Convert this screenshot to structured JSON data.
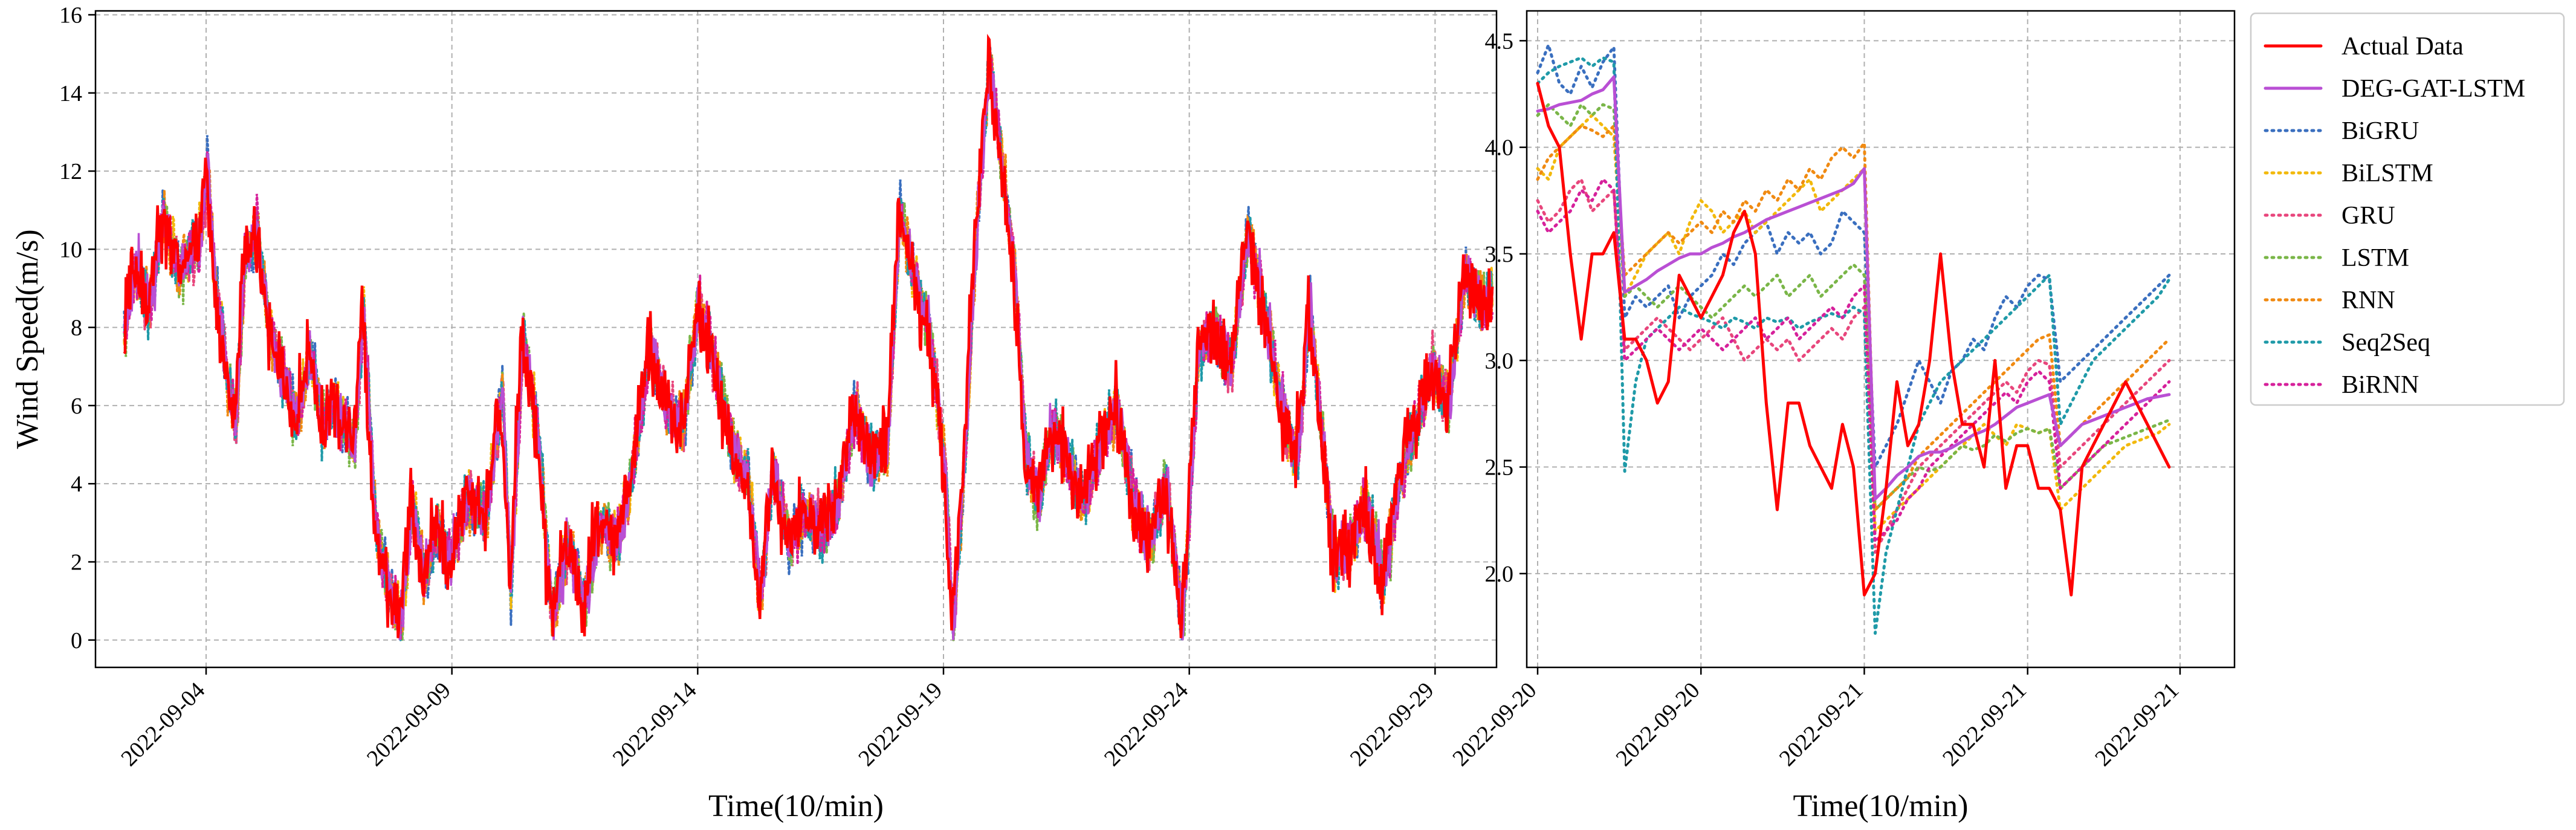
{
  "chart_data": [
    {
      "type": "line",
      "xlabel": "Time(10/min)",
      "ylabel": "Wind Speed(m/s)",
      "xlim": [
        "2022-09-01T18:00",
        "2022-09-30T06:00"
      ],
      "ylim": [
        -0.7,
        16.1
      ],
      "yticks": [
        0,
        2,
        4,
        6,
        8,
        10,
        12,
        14,
        16
      ],
      "xticks": [
        "2022-09-04",
        "2022-09-09",
        "2022-09-14",
        "2022-09-19",
        "2022-09-24",
        "2022-09-29"
      ],
      "grid": true,
      "actual_keypoints": [
        [
          "2022-09-02T08:00",
          8.0
        ],
        [
          "2022-09-02T12:00",
          9.6
        ],
        [
          "2022-09-02T20:00",
          8.5
        ],
        [
          "2022-09-03T02:00",
          10.8
        ],
        [
          "2022-09-03T10:00",
          9.5
        ],
        [
          "2022-09-03T20:00",
          10.2
        ],
        [
          "2022-09-04T00:00",
          12.0
        ],
        [
          "2022-09-04T04:00",
          9.0
        ],
        [
          "2022-09-04T10:00",
          6.5
        ],
        [
          "2022-09-04T14:00",
          5.6
        ],
        [
          "2022-09-04T18:00",
          9.6
        ],
        [
          "2022-09-05T00:00",
          10.5
        ],
        [
          "2022-09-05T06:00",
          8.0
        ],
        [
          "2022-09-05T12:00",
          7.0
        ],
        [
          "2022-09-05T20:00",
          5.5
        ],
        [
          "2022-09-06T02:00",
          7.5
        ],
        [
          "2022-09-06T08:00",
          5.5
        ],
        [
          "2022-09-06T14:00",
          6.0
        ],
        [
          "2022-09-07T00:00",
          5.0
        ],
        [
          "2022-09-07T04:00",
          8.5
        ],
        [
          "2022-09-07T10:00",
          3.0
        ],
        [
          "2022-09-07T16:00",
          1.5
        ],
        [
          "2022-09-07T22:00",
          0.3
        ],
        [
          "2022-09-08T04:00",
          3.5
        ],
        [
          "2022-09-08T10:00",
          1.5
        ],
        [
          "2022-09-08T16:00",
          3.0
        ],
        [
          "2022-09-08T22:00",
          2.0
        ],
        [
          "2022-09-09T06:00",
          3.5
        ],
        [
          "2022-09-09T16:00",
          3.2
        ],
        [
          "2022-09-10T00:00",
          6.5
        ],
        [
          "2022-09-10T04:00",
          1.2
        ],
        [
          "2022-09-10T10:00",
          7.8
        ],
        [
          "2022-09-10T18:00",
          5.0
        ],
        [
          "2022-09-11T00:00",
          0.5
        ],
        [
          "2022-09-11T08:00",
          2.5
        ],
        [
          "2022-09-11T16:00",
          1.0
        ],
        [
          "2022-09-12T00:00",
          3.0
        ],
        [
          "2022-09-12T08:00",
          2.5
        ],
        [
          "2022-09-12T16:00",
          4.5
        ],
        [
          "2022-09-13T00:00",
          7.5
        ],
        [
          "2022-09-13T08:00",
          6.0
        ],
        [
          "2022-09-13T16:00",
          5.5
        ],
        [
          "2022-09-14T00:00",
          8.5
        ],
        [
          "2022-09-14T08:00",
          7.0
        ],
        [
          "2022-09-14T16:00",
          5.0
        ],
        [
          "2022-09-15T00:00",
          4.0
        ],
        [
          "2022-09-15T06:00",
          1.0
        ],
        [
          "2022-09-15T12:00",
          4.5
        ],
        [
          "2022-09-15T20:00",
          2.5
        ],
        [
          "2022-09-16T04:00",
          3.2
        ],
        [
          "2022-09-16T12:00",
          2.8
        ],
        [
          "2022-09-16T20:00",
          3.5
        ],
        [
          "2022-09-17T04:00",
          6.0
        ],
        [
          "2022-09-17T12:00",
          4.5
        ],
        [
          "2022-09-17T20:00",
          5.0
        ],
        [
          "2022-09-18T02:00",
          11.0
        ],
        [
          "2022-09-18T08:00",
          9.5
        ],
        [
          "2022-09-18T16:00",
          8.0
        ],
        [
          "2022-09-19T00:00",
          4.5
        ],
        [
          "2022-09-19T04:00",
          0.2
        ],
        [
          "2022-09-19T10:00",
          5.0
        ],
        [
          "2022-09-19T16:00",
          11.0
        ],
        [
          "2022-09-19T22:00",
          14.8
        ],
        [
          "2022-09-20T04:00",
          12.0
        ],
        [
          "2022-09-20T10:00",
          9.5
        ],
        [
          "2022-09-20T16:00",
          4.5
        ],
        [
          "2022-09-20T22:00",
          3.5
        ],
        [
          "2022-09-21T04:00",
          5.5
        ],
        [
          "2022-09-21T12:00",
          4.5
        ],
        [
          "2022-09-21T20:00",
          3.5
        ],
        [
          "2022-09-22T04:00",
          5.0
        ],
        [
          "2022-09-22T12:00",
          6.0
        ],
        [
          "2022-09-22T20:00",
          3.5
        ],
        [
          "2022-09-23T04:00",
          2.5
        ],
        [
          "2022-09-23T12:00",
          4.0
        ],
        [
          "2022-09-23T20:00",
          0.3
        ],
        [
          "2022-09-24T04:00",
          7.5
        ],
        [
          "2022-09-24T12:00",
          8.0
        ],
        [
          "2022-09-24T20:00",
          7.0
        ],
        [
          "2022-09-25T04:00",
          10.5
        ],
        [
          "2022-09-25T12:00",
          8.5
        ],
        [
          "2022-09-25T20:00",
          6.0
        ],
        [
          "2022-09-26T04:00",
          4.5
        ],
        [
          "2022-09-26T10:00",
          8.5
        ],
        [
          "2022-09-26T16:00",
          5.5
        ],
        [
          "2022-09-26T22:00",
          2.0
        ],
        [
          "2022-09-27T06:00",
          2.5
        ],
        [
          "2022-09-27T14:00",
          3.5
        ],
        [
          "2022-09-27T22:00",
          1.5
        ],
        [
          "2022-09-28T06:00",
          4.0
        ],
        [
          "2022-09-28T14:00",
          5.5
        ],
        [
          "2022-09-28T22:00",
          7.0
        ],
        [
          "2022-09-29T06:00",
          6.0
        ],
        [
          "2022-09-29T14:00",
          9.5
        ],
        [
          "2022-09-29T22:00",
          8.5
        ],
        [
          "2022-09-30T04:00",
          9.0
        ]
      ]
    },
    {
      "type": "line",
      "xlabel": "Time(10/min)",
      "ylabel": "",
      "ylim": [
        1.56,
        4.64
      ],
      "yticks": [
        2.0,
        2.5,
        3.0,
        3.5,
        4.0,
        4.5
      ],
      "xticks": [
        "2022-09-20",
        "2022-09-20",
        "2022-09-21",
        "2022-09-21",
        "2022-09-21"
      ],
      "grid": true,
      "legend_position": "outside-right",
      "x": [
        1,
        2,
        3,
        4,
        5,
        6,
        7,
        8,
        9,
        10,
        11,
        12,
        13,
        14,
        15,
        16,
        17,
        18,
        19,
        20,
        21,
        22,
        23,
        24,
        25,
        26,
        27,
        28,
        29,
        30,
        31,
        32,
        33,
        34,
        35,
        36,
        37,
        38,
        39,
        40,
        41,
        42,
        43,
        44,
        45,
        46,
        47,
        48,
        49,
        50,
        51,
        52,
        53,
        54,
        55,
        56,
        57,
        58,
        59
      ],
      "xlim": [
        0,
        65
      ],
      "xtick_positions": [
        1,
        16,
        31,
        46,
        60
      ],
      "series": [
        {
          "name": "Actual Data",
          "color": "#ff0000",
          "style": "solid",
          "values": [
            4.3,
            4.1,
            4.0,
            3.5,
            3.1,
            3.5,
            3.5,
            3.6,
            3.1,
            3.1,
            3.0,
            2.8,
            2.9,
            3.4,
            3.3,
            3.2,
            3.3,
            3.4,
            3.6,
            3.7,
            3.5,
            2.8,
            2.3,
            2.8,
            2.8,
            2.6,
            2.5,
            2.4,
            2.7,
            2.5,
            1.9,
            2.0,
            2.4,
            2.9,
            2.6,
            2.7,
            3.0,
            3.5,
            3.0,
            2.7,
            2.7,
            2.5,
            3.0,
            2.4,
            2.6,
            2.6,
            2.4,
            2.4,
            2.3,
            1.9,
            2.5,
            2.6,
            2.7,
            2.8,
            2.9,
            2.8,
            2.7,
            2.6,
            2.5
          ]
        },
        {
          "name": "DEG-GAT-LSTM",
          "color": "#b94fd4",
          "style": "solid",
          "values": [
            4.17,
            4.18,
            4.2,
            4.21,
            4.22,
            4.25,
            4.27,
            4.33,
            3.32,
            3.35,
            3.38,
            3.42,
            3.45,
            3.48,
            3.5,
            3.5,
            3.53,
            3.55,
            3.58,
            3.6,
            3.63,
            3.66,
            3.68,
            3.7,
            3.72,
            3.74,
            3.76,
            3.78,
            3.8,
            3.83,
            3.9,
            2.35,
            2.4,
            2.46,
            2.5,
            2.55,
            2.57,
            2.57,
            2.59,
            2.62,
            2.65,
            2.67,
            2.7,
            2.74,
            2.78,
            2.8,
            2.82,
            2.84,
            2.6,
            2.65,
            2.7,
            2.72,
            2.74,
            2.76,
            2.78,
            2.8,
            2.82,
            2.83,
            2.84
          ]
        },
        {
          "name": "BiGRU",
          "color": "#3a6fbf",
          "style": "dotted",
          "values": [
            4.35,
            4.48,
            4.3,
            4.25,
            4.38,
            4.28,
            4.4,
            4.47,
            3.2,
            3.3,
            3.25,
            3.3,
            3.35,
            3.2,
            3.3,
            3.35,
            3.4,
            3.5,
            3.45,
            3.55,
            3.6,
            3.65,
            3.5,
            3.6,
            3.55,
            3.6,
            3.5,
            3.55,
            3.7,
            3.65,
            3.6,
            2.5,
            2.6,
            2.7,
            2.85,
            3.0,
            2.9,
            2.8,
            2.95,
            3.0,
            3.1,
            3.05,
            3.2,
            3.3,
            3.25,
            3.35,
            3.4,
            3.38,
            2.9,
            2.95,
            3.0,
            3.05,
            3.1,
            3.15,
            3.2,
            3.25,
            3.3,
            3.35,
            3.4
          ]
        },
        {
          "name": "BiLSTM",
          "color": "#f2b90c",
          "style": "dotted",
          "values": [
            3.9,
            3.85,
            4.0,
            4.05,
            4.1,
            4.15,
            4.1,
            4.05,
            3.3,
            3.4,
            3.5,
            3.55,
            3.6,
            3.5,
            3.65,
            3.75,
            3.7,
            3.6,
            3.65,
            3.7,
            3.6,
            3.65,
            3.7,
            3.75,
            3.8,
            3.85,
            3.7,
            3.75,
            3.8,
            3.85,
            3.9,
            2.2,
            2.25,
            2.3,
            2.35,
            2.4,
            2.45,
            2.5,
            2.55,
            2.6,
            2.65,
            2.7,
            2.65,
            2.6,
            2.7,
            2.68,
            2.66,
            2.68,
            2.3,
            2.35,
            2.4,
            2.45,
            2.5,
            2.55,
            2.6,
            2.62,
            2.64,
            2.66,
            2.7
          ]
        },
        {
          "name": "GRU",
          "color": "#e8467c",
          "style": "dotted",
          "values": [
            3.75,
            3.65,
            3.7,
            3.8,
            3.85,
            3.7,
            3.75,
            3.8,
            3.05,
            3.1,
            3.15,
            3.2,
            3.15,
            3.1,
            3.05,
            3.1,
            3.15,
            3.2,
            3.1,
            3.0,
            3.05,
            3.1,
            3.05,
            3.1,
            3.0,
            3.05,
            3.1,
            3.15,
            3.1,
            3.2,
            3.25,
            2.1,
            2.2,
            2.3,
            2.4,
            2.5,
            2.55,
            2.6,
            2.65,
            2.7,
            2.75,
            2.8,
            2.85,
            2.9,
            2.85,
            2.95,
            3.0,
            2.98,
            2.5,
            2.55,
            2.6,
            2.65,
            2.7,
            2.75,
            2.8,
            2.85,
            2.9,
            2.95,
            3.0
          ]
        },
        {
          "name": "LSTM",
          "color": "#7ab648",
          "style": "dotted",
          "values": [
            4.15,
            4.2,
            4.15,
            4.1,
            4.2,
            4.15,
            4.2,
            4.18,
            3.3,
            3.35,
            3.3,
            3.25,
            3.3,
            3.35,
            3.3,
            3.25,
            3.2,
            3.25,
            3.3,
            3.35,
            3.3,
            3.35,
            3.4,
            3.3,
            3.35,
            3.4,
            3.3,
            3.35,
            3.4,
            3.45,
            3.4,
            2.3,
            2.35,
            2.4,
            2.45,
            2.5,
            2.48,
            2.5,
            2.55,
            2.6,
            2.58,
            2.6,
            2.65,
            2.62,
            2.66,
            2.68,
            2.66,
            2.68,
            2.4,
            2.45,
            2.5,
            2.55,
            2.6,
            2.62,
            2.64,
            2.66,
            2.68,
            2.7,
            2.72
          ]
        },
        {
          "name": "RNN",
          "color": "#f08a12",
          "style": "dotted",
          "values": [
            3.85,
            3.95,
            4.0,
            4.05,
            4.1,
            4.08,
            4.05,
            4.1,
            3.4,
            3.45,
            3.5,
            3.55,
            3.6,
            3.55,
            3.6,
            3.65,
            3.6,
            3.7,
            3.65,
            3.75,
            3.7,
            3.8,
            3.75,
            3.85,
            3.8,
            3.9,
            3.85,
            3.95,
            4.0,
            3.95,
            4.02,
            2.3,
            2.35,
            2.4,
            2.45,
            2.55,
            2.6,
            2.65,
            2.7,
            2.75,
            2.8,
            2.85,
            2.9,
            2.95,
            3.0,
            3.05,
            3.1,
            3.12,
            2.6,
            2.65,
            2.7,
            2.75,
            2.8,
            2.85,
            2.9,
            2.95,
            3.0,
            3.05,
            3.1
          ]
        },
        {
          "name": "Seq2Seq",
          "color": "#1f9aa8",
          "style": "dotted",
          "values": [
            4.3,
            4.35,
            4.38,
            4.4,
            4.42,
            4.38,
            4.42,
            4.4,
            2.48,
            2.9,
            3.1,
            3.15,
            3.2,
            3.25,
            3.22,
            3.2,
            3.18,
            3.15,
            3.2,
            3.18,
            3.15,
            3.2,
            3.18,
            3.2,
            3.15,
            3.18,
            3.2,
            3.22,
            3.2,
            3.25,
            3.22,
            1.72,
            2.1,
            2.3,
            2.5,
            2.7,
            2.8,
            2.9,
            2.95,
            3.0,
            3.05,
            3.1,
            3.15,
            3.2,
            3.25,
            3.3,
            3.35,
            3.4,
            2.7,
            2.8,
            2.9,
            3.0,
            3.05,
            3.1,
            3.15,
            3.2,
            3.25,
            3.3,
            3.38
          ]
        },
        {
          "name": "BiRNN",
          "color": "#d6219b",
          "style": "dotted",
          "values": [
            3.7,
            3.6,
            3.65,
            3.7,
            3.8,
            3.75,
            3.85,
            3.8,
            3.0,
            3.05,
            3.1,
            3.15,
            3.1,
            3.05,
            3.1,
            3.15,
            3.1,
            3.05,
            3.1,
            3.15,
            3.2,
            3.1,
            3.15,
            3.2,
            3.1,
            3.15,
            3.2,
            3.25,
            3.2,
            3.3,
            3.35,
            2.15,
            2.2,
            2.25,
            2.35,
            2.4,
            2.5,
            2.55,
            2.6,
            2.65,
            2.7,
            2.75,
            2.8,
            2.85,
            2.8,
            2.9,
            2.95,
            2.9,
            2.4,
            2.45,
            2.5,
            2.55,
            2.6,
            2.65,
            2.7,
            2.75,
            2.8,
            2.85,
            2.9
          ]
        }
      ]
    }
  ]
}
